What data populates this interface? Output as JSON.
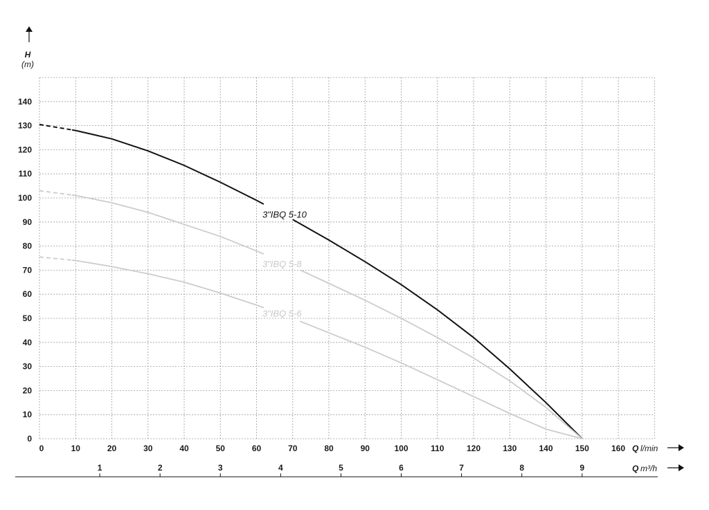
{
  "chart_data": {
    "type": "line",
    "y_axis": {
      "name": "H",
      "unit": "(m)",
      "ylim": [
        0,
        150
      ],
      "ticks": [
        0,
        10,
        20,
        30,
        40,
        50,
        60,
        70,
        80,
        90,
        100,
        110,
        120,
        130,
        140
      ]
    },
    "x_axis": {
      "name": "Q",
      "unit": "l/min",
      "xlim": [
        0,
        170
      ],
      "ticks": [
        0,
        10,
        20,
        30,
        40,
        50,
        60,
        70,
        80,
        90,
        100,
        110,
        120,
        130,
        140,
        150,
        160
      ]
    },
    "x2_axis": {
      "name": "Q",
      "unit": "m³/h",
      "ticks": [
        1,
        2,
        3,
        4,
        5,
        6,
        7,
        8,
        9
      ]
    },
    "grid": true,
    "series": [
      {
        "name": "3\"IBQ 5-10",
        "color": "#111111",
        "x": [
          0,
          10,
          20,
          30,
          40,
          50,
          60,
          70,
          80,
          90,
          100,
          110,
          120,
          130,
          140,
          150
        ],
        "y": [
          130.5,
          128,
          124.5,
          119.5,
          113.5,
          106.5,
          99,
          91,
          82.5,
          73.5,
          64,
          53.5,
          42,
          29,
          15,
          0
        ]
      },
      {
        "name": "3\"IBQ 5-8",
        "color": "#cccccc",
        "x": [
          0,
          10,
          20,
          30,
          40,
          50,
          60,
          70,
          80,
          90,
          100,
          110,
          120,
          130,
          140,
          150
        ],
        "y": [
          103,
          101,
          98,
          94,
          89,
          84,
          78,
          71.5,
          64.5,
          57.5,
          50,
          42,
          33.5,
          24,
          13,
          0
        ]
      },
      {
        "name": "3\"IBQ 5-6",
        "color": "#cccccc",
        "x": [
          0,
          10,
          20,
          30,
          40,
          50,
          60,
          70,
          80,
          90,
          100,
          110,
          120,
          130,
          140,
          150
        ],
        "y": [
          75.5,
          74,
          71.5,
          68.5,
          65,
          60.5,
          55.5,
          50,
          44,
          38,
          31.5,
          24.5,
          17.5,
          10.5,
          4,
          0
        ]
      }
    ]
  }
}
